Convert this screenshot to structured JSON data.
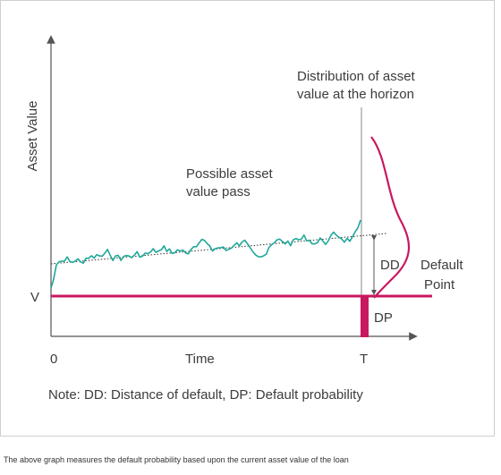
{
  "diagram": {
    "y_axis_label": "Asset Value",
    "v_label": "V",
    "origin_label": "0",
    "x_axis_label": "Time",
    "t_label": "T",
    "distribution_label": [
      "Distribution of asset",
      "value at the horizon"
    ],
    "path_label": [
      "Possible asset",
      "value pass"
    ],
    "dd_label": "DD",
    "default_point_label": [
      "Default",
      "Point"
    ],
    "dp_label": "DP",
    "note": "Note: DD: Distance of default, DP: Default probability"
  },
  "caption": "The above graph measures the default probability based upon the current asset value of the loan",
  "colors": {
    "path": "#1ea89a",
    "default_line": "#c8185e",
    "axis": "#555555",
    "text": "#3c3c3c"
  }
}
